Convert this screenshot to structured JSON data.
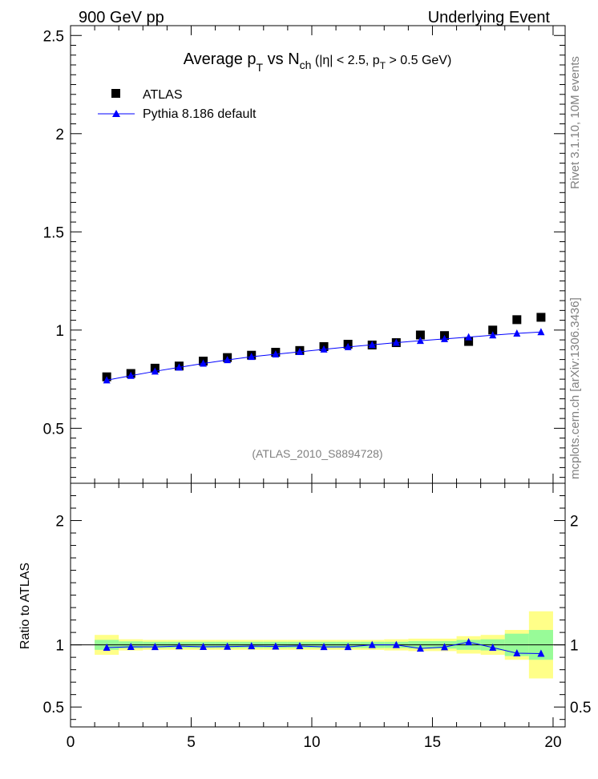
{
  "header": {
    "left": "900 GeV pp",
    "right": "Underlying Event"
  },
  "side_labels": {
    "rivet": "Rivet 3.1.10, 10M events",
    "mcplots": "mcplots.cern.ch [arXiv:1306.3436]"
  },
  "chart_data": {
    "type": "scatter",
    "title_main": "Average p",
    "title_sub_t": "T",
    "title_vs": " vs N",
    "title_sub_ch": "ch",
    "title_cut_a": " (|η| < 2.5, p",
    "title_cut_t": "T",
    "title_cut_b": " > 0.5 GeV)",
    "analysis_id": "(ATLAS_2010_S8894728)",
    "legend": {
      "data_label": "ATLAS",
      "mc_label": "Pythia 8.186 default",
      "placement": "top-left"
    },
    "xlim": [
      0,
      20.5
    ],
    "main_ylim": [
      0.22,
      2.55
    ],
    "ratio_ylim": [
      0.34,
      2.3
    ],
    "xticks": [
      0,
      5,
      10,
      15,
      20
    ],
    "xtick_labels": [
      "0",
      "5",
      "10",
      "15",
      "20"
    ],
    "main_yticks": [
      0.5,
      1,
      1.5,
      2,
      2.5
    ],
    "main_ytick_labels": [
      "0.5",
      "1",
      "1.5",
      "2",
      "2.5"
    ],
    "ratio_yticks": [
      0.5,
      1,
      2
    ],
    "ratio_ytick_labels": [
      "0.5",
      "1",
      "2"
    ],
    "ratio_ylabel": "Ratio to ATLAS",
    "x": [
      1.5,
      2.5,
      3.5,
      4.5,
      5.5,
      6.5,
      7.5,
      8.5,
      9.5,
      10.5,
      11.5,
      12.5,
      13.5,
      14.5,
      15.5,
      16.5,
      17.5,
      18.5,
      19.5
    ],
    "series": [
      {
        "name": "ATLAS",
        "values": [
          0.762,
          0.779,
          0.806,
          0.817,
          0.842,
          0.86,
          0.872,
          0.887,
          0.896,
          0.916,
          0.928,
          0.924,
          0.936,
          0.975,
          0.972,
          0.942,
          1.0,
          1.053,
          1.065
        ],
        "color": "#000000"
      },
      {
        "name": "Pythia 8.186 default",
        "values": [
          0.745,
          0.768,
          0.79,
          0.81,
          0.83,
          0.848,
          0.864,
          0.877,
          0.889,
          0.902,
          0.914,
          0.925,
          0.936,
          0.946,
          0.955,
          0.964,
          0.974,
          0.983,
          0.99
        ],
        "color": "#0000ff"
      }
    ],
    "ratio": {
      "values": [
        0.978,
        0.985,
        0.984,
        0.99,
        0.985,
        0.986,
        0.99,
        0.988,
        0.991,
        0.984,
        0.984,
        1.0,
        1.0,
        0.971,
        0.982,
        1.023,
        0.978,
        0.933,
        0.93
      ],
      "band_inner": [
        0.04,
        0.028,
        0.025,
        0.025,
        0.025,
        0.025,
        0.025,
        0.025,
        0.025,
        0.025,
        0.025,
        0.025,
        0.025,
        0.03,
        0.03,
        0.04,
        0.045,
        0.09,
        0.12
      ],
      "band_outer": [
        0.08,
        0.045,
        0.04,
        0.04,
        0.04,
        0.04,
        0.04,
        0.04,
        0.04,
        0.04,
        0.04,
        0.04,
        0.045,
        0.05,
        0.05,
        0.07,
        0.08,
        0.12,
        0.27
      ],
      "inner_color": "#98fb98",
      "outer_color": "#ffff88"
    }
  }
}
